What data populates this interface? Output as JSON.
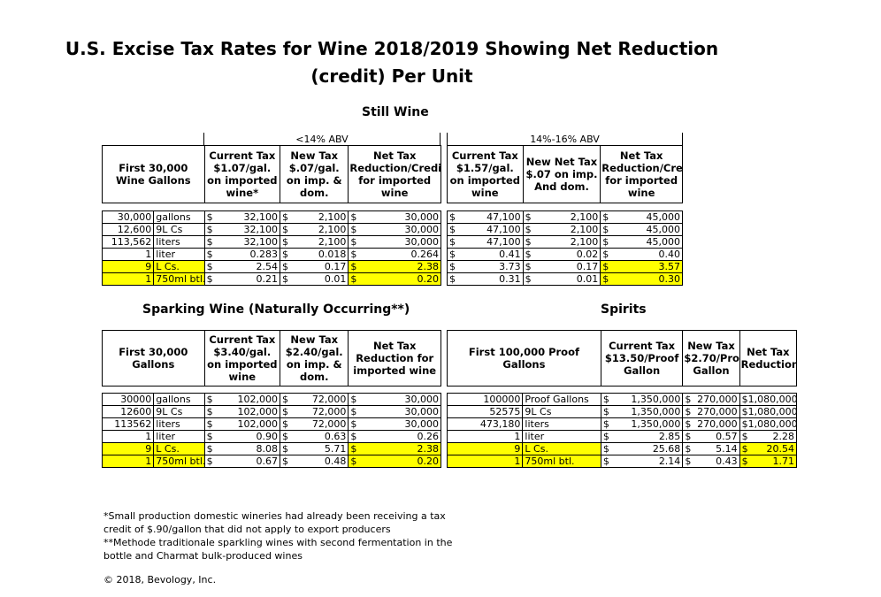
{
  "title_line1": "U.S. Excise Tax Rates for Wine 2018/2019 Showing Net Reduction",
  "title_line2": "(credit) Per Unit",
  "still_wine": {
    "heading": "Still Wine",
    "abv_low": "<14% ABV",
    "abv_high": "14%-16% ABV",
    "headers": [
      "First 30,000 Wine Gallons",
      "Current Tax $1.07/gal. on imported wine*",
      "New Tax $.07/gal. on imp. & dom.",
      "Net Tax Reduction/Credit for imported wine",
      "Current Tax $1.57/gal. on imported wine",
      "New Net Tax $.07 on imp. And dom.",
      "Net Tax Reduction/Credit for imported wine"
    ],
    "rows": [
      {
        "qty": "30,000",
        "unit": "gallons",
        "c1": "32,100",
        "c2": "2,100",
        "c3": "30,000",
        "c4": "47,100",
        "c5": "2,100",
        "c6": "45,000"
      },
      {
        "qty": "12,600",
        "unit": "9L Cs",
        "c1": "32,100",
        "c2": "2,100",
        "c3": "30,000",
        "c4": "47,100",
        "c5": "2,100",
        "c6": "45,000"
      },
      {
        "qty": "113,562",
        "unit": "liters",
        "c1": "32,100",
        "c2": "2,100",
        "c3": "30,000",
        "c4": "47,100",
        "c5": "2,100",
        "c6": "45,000"
      },
      {
        "qty": "1",
        "unit": "liter",
        "c1": "0.283",
        "c2": "0.018",
        "c3": "0.264",
        "c4": "0.41",
        "c5": "0.02",
        "c6": "0.40"
      },
      {
        "qty": "9",
        "unit": "L Cs.",
        "c1": "2.54",
        "c2": "0.17",
        "c3": "2.38",
        "c4": "3.73",
        "c5": "0.17",
        "c6": "3.57"
      },
      {
        "qty": "1",
        "unit": "750ml btl.",
        "c1": "0.21",
        "c2": "0.01",
        "c3": "0.20",
        "c4": "0.31",
        "c5": "0.01",
        "c6": "0.30"
      }
    ]
  },
  "sparkling": {
    "heading": "Sparking Wine (Naturally Occurring**)",
    "headers": [
      "First 30,000 Gallons",
      "Current Tax $3.40/gal. on imported wine",
      "New Tax $2.40/gal. on imp. & dom.",
      "Net Tax Reduction for imported wine"
    ],
    "rows": [
      {
        "qty": "30000",
        "unit": "gallons",
        "c1": "102,000",
        "c2": "72,000",
        "c3": "30,000"
      },
      {
        "qty": "12600",
        "unit": "9L Cs",
        "c1": "102,000",
        "c2": "72,000",
        "c3": "30,000"
      },
      {
        "qty": "113562",
        "unit": "liters",
        "c1": "102,000",
        "c2": "72,000",
        "c3": "30,000"
      },
      {
        "qty": "1",
        "unit": "liter",
        "c1": "0.90",
        "c2": "0.63",
        "c3": "0.26"
      },
      {
        "qty": "9",
        "unit": "L Cs.",
        "c1": "8.08",
        "c2": "5.71",
        "c3": "2.38"
      },
      {
        "qty": "1",
        "unit": "750ml btl.",
        "c1": "0.67",
        "c2": "0.48",
        "c3": "0.20"
      }
    ]
  },
  "spirits": {
    "heading": "Spirits",
    "headers": [
      "First 100,000 Proof Gallons",
      "Current Tax $13.50/Proof Gallon",
      "New Tax $2.70/Proof Gallon",
      "Net Tax Reduction"
    ],
    "rows": [
      {
        "qty": "100000",
        "unit": "Proof Gallons",
        "c1": "1,350,000",
        "c2": "270,000",
        "c3": "$1,080,000"
      },
      {
        "qty": "52575",
        "unit": "9L Cs",
        "c1": "1,350,000",
        "c2": "270,000",
        "c3": "$1,080,000"
      },
      {
        "qty": "473,180",
        "unit": "liters",
        "c1": "1,350,000",
        "c2": "270,000",
        "c3": "$1,080,000"
      },
      {
        "qty": "1",
        "unit": "liter",
        "c1": "2.85",
        "c2": "0.57",
        "c3": "2.28"
      },
      {
        "qty": "9",
        "unit": "L Cs.",
        "c1": "25.68",
        "c2": "5.14",
        "c3": "20.54"
      },
      {
        "qty": "1",
        "unit": "750ml btl.",
        "c1": "2.14",
        "c2": "0.43",
        "c3": "1.71"
      }
    ]
  },
  "currency": "$",
  "footnote1": "*Small production domestic wineries had already been receiving a tax",
  "footnote1b": "credit of $.90/gallon that did not apply to export producers",
  "footnote2": "**Methode traditionale sparkling wines with second fermentation in the",
  "footnote2b": "bottle and Charmat bulk-produced wines",
  "copyright": "© 2018, Bevology, Inc.",
  "highlight_color": "#ffff00"
}
